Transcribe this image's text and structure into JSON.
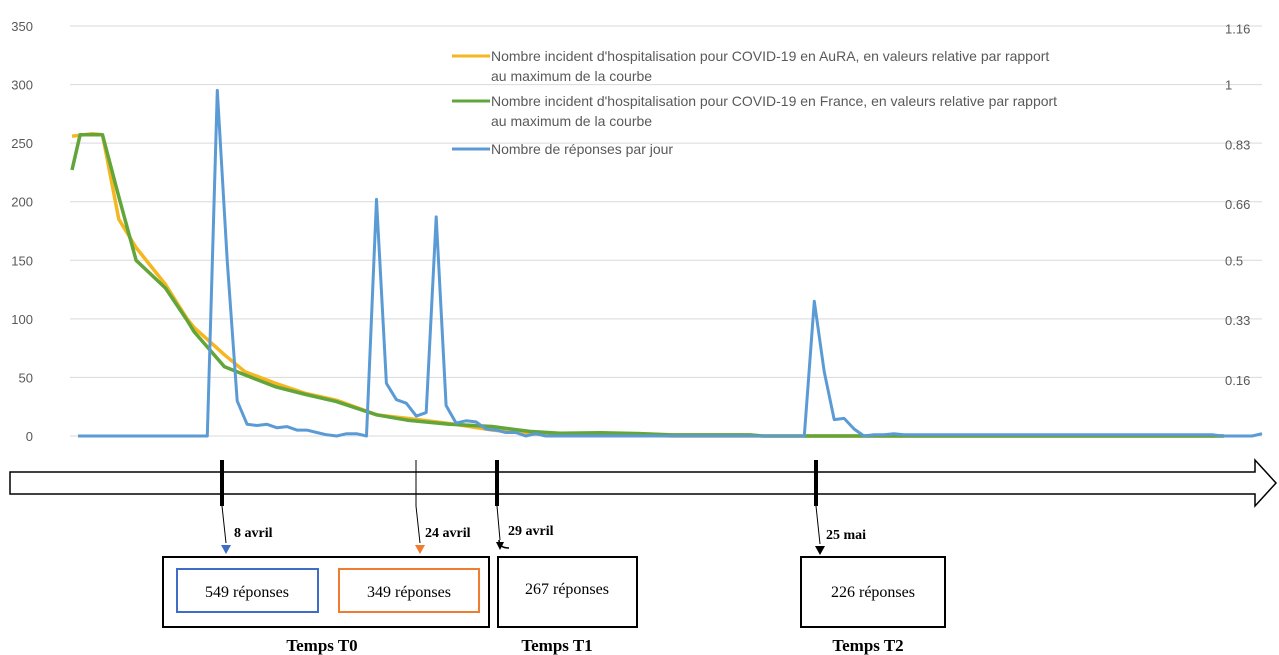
{
  "chart_data": {
    "type": "line",
    "left_axis": {
      "ylim": [
        0,
        350
      ],
      "ticks": [
        "0",
        "50",
        "100",
        "150",
        "200",
        "250",
        "300",
        "350"
      ]
    },
    "right_axis": {
      "ticks": [
        "0.16",
        "0.33",
        "0.5",
        "0.66",
        "0.83",
        "1",
        "1.16"
      ],
      "tick_values": [
        0.16,
        0.33,
        0.5,
        0.66,
        0.83,
        1,
        1.16
      ],
      "ylim": [
        0,
        1.1667
      ]
    },
    "grid": true,
    "legend_position": "top-right",
    "series": [
      {
        "name": "Nombre incident d'hospitalisation pour COVID-19 en AuRA, en valeurs relative par rapport au maximum de la courbe",
        "color": "#f5b620",
        "axis": "right",
        "x": [
          0,
          8,
          20,
          30,
          46,
          63,
          92,
          113,
          120,
          150,
          170,
          200,
          230,
          260,
          300,
          330,
          370,
          413,
          450,
          480,
          520,
          556,
          590,
          633,
          667,
          680,
          700,
          720,
          760,
          800,
          850,
          900,
          920,
          955,
          1000,
          1050,
          1100,
          1133
        ],
        "y": [
          0.853,
          0.856,
          0.86,
          0.857,
          0.617,
          0.536,
          0.431,
          0.334,
          0.309,
          0.231,
          0.183,
          0.15,
          0.121,
          0.102,
          0.06,
          0.05,
          0.036,
          0.017,
          0.006,
          0.003,
          0.003,
          0.003,
          0.0,
          0.0,
          0.0,
          0,
          0,
          0,
          0,
          0,
          0,
          0,
          0,
          0,
          0,
          0,
          0,
          0
        ]
      },
      {
        "name": "Nombre incident d'hospitalisation pour COVID-19 en France, en valeurs relative par rapport au maximum de la courbe",
        "color": "#62a53b",
        "axis": "right",
        "x": [
          0,
          8,
          20,
          30,
          46,
          63,
          92,
          113,
          120,
          150,
          170,
          200,
          230,
          260,
          300,
          330,
          370,
          413,
          450,
          480,
          520,
          556,
          590,
          633,
          667,
          680,
          700,
          720,
          760,
          800,
          850,
          900,
          920,
          955,
          1000,
          1050,
          1100,
          1133
        ],
        "y": [
          0.757,
          0.857,
          0.857,
          0.857,
          0.681,
          0.5,
          0.421,
          0.33,
          0.297,
          0.197,
          0.174,
          0.14,
          0.118,
          0.098,
          0.06,
          0.045,
          0.034,
          0.027,
          0.013,
          0.008,
          0.009,
          0.007,
          0.003,
          0.003,
          0.003,
          0,
          0,
          0,
          0,
          0,
          0,
          0,
          0,
          0,
          0,
          0,
          0,
          0
        ]
      },
      {
        "name": "Nombre de réponses par jour",
        "color": "#5b9bd5",
        "axis": "left",
        "x": [
          0,
          1,
          2,
          3,
          4,
          5,
          6,
          7,
          8,
          9,
          10,
          11,
          12,
          13,
          14,
          15,
          16,
          17,
          18,
          19,
          20,
          21,
          22,
          23,
          24,
          25,
          26,
          27,
          28,
          29,
          30,
          31,
          32,
          33,
          34,
          35,
          36,
          37,
          38,
          39,
          40,
          41,
          42,
          43,
          44,
          45,
          46,
          47,
          48,
          49,
          50,
          51,
          52,
          53,
          54,
          55,
          56,
          57,
          58,
          59,
          60,
          61,
          62,
          63,
          64,
          65,
          66,
          67,
          68,
          69,
          70,
          71,
          72,
          73,
          74,
          75,
          76,
          77,
          78,
          79,
          80,
          81,
          82,
          83,
          84,
          85,
          86,
          87,
          88,
          89,
          90,
          91,
          92,
          93,
          94,
          95,
          96,
          97,
          98,
          99,
          100,
          101,
          102,
          103,
          104,
          105,
          106,
          107,
          108,
          109,
          110,
          111,
          112,
          113,
          114,
          115,
          116,
          117,
          118,
          119
        ],
        "y": [
          0,
          0,
          0,
          0,
          0,
          0,
          0,
          0,
          0,
          0,
          0,
          0,
          0,
          0,
          295,
          150,
          30,
          10,
          9,
          10,
          7,
          8,
          5,
          5,
          3,
          1,
          0,
          2,
          2,
          0,
          202,
          45,
          31,
          28,
          17,
          20,
          187,
          26,
          11,
          13,
          12,
          6,
          5,
          3,
          3,
          0,
          2,
          0,
          0,
          0,
          0,
          0,
          0,
          0,
          0,
          0,
          0,
          0,
          0,
          0,
          0,
          0,
          0,
          0,
          0,
          0,
          0,
          0,
          0,
          0,
          0,
          0,
          0,
          0,
          115,
          55,
          14,
          15,
          6,
          0,
          1,
          1,
          2,
          1,
          1,
          1,
          1,
          1,
          1,
          1,
          1,
          1,
          1,
          1,
          1,
          1,
          1,
          1,
          1,
          1,
          1,
          1,
          1,
          1,
          1,
          1,
          1,
          1,
          1,
          1,
          1,
          1,
          1,
          1,
          1,
          0,
          0,
          0,
          0,
          2
        ]
      }
    ]
  },
  "timeline": {
    "markers": [
      {
        "label": "8 avril",
        "arrow_color": "#3f6cc6"
      },
      {
        "label": "24 avril",
        "arrow_color": "#ee7d31"
      },
      {
        "label": "29 avril",
        "arrow_color": "#000000"
      },
      {
        "label": "25 mai",
        "arrow_color": "#000000"
      }
    ],
    "boxes": {
      "t0_a": "549 réponses",
      "t0_b": "349 réponses",
      "t1": "267 réponses",
      "t2": "226 réponses"
    },
    "box_colors": {
      "t0_a": "#3f6cc6",
      "t0_b": "#ee7d31"
    },
    "periods": [
      "Temps T0",
      "Temps T1",
      "Temps T2"
    ]
  }
}
